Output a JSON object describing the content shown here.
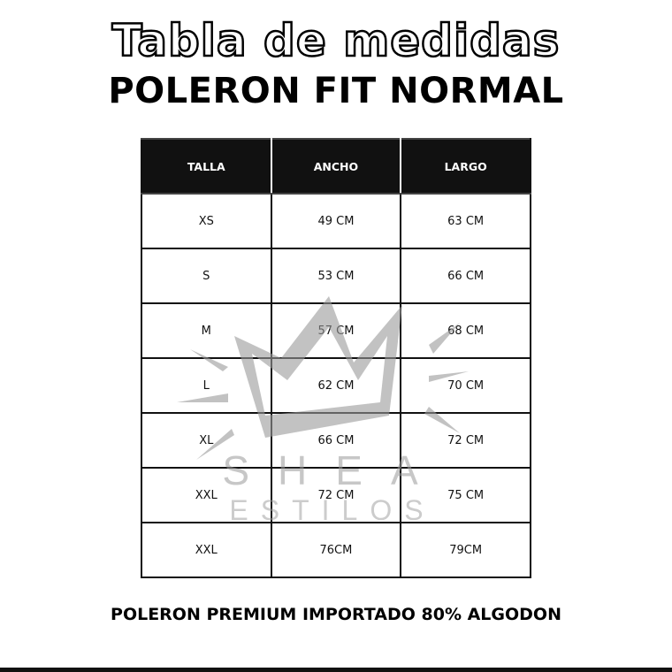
{
  "header": {
    "title": "Tabla de medidas",
    "subtitle": "POLERON FIT NORMAL"
  },
  "table": {
    "columns": [
      "TALLA",
      "ANCHO",
      "LARGO"
    ],
    "rows": [
      [
        "XS",
        "49 CM",
        "63 CM"
      ],
      [
        "S",
        "53 CM",
        "66 CM"
      ],
      [
        "M",
        "57 CM",
        "68 CM"
      ],
      [
        "L",
        "62 CM",
        "70 CM"
      ],
      [
        "XL",
        "66 CM",
        "72 CM"
      ],
      [
        "XXL",
        "72 CM",
        "75 CM"
      ],
      [
        "XXL",
        "76CM",
        "79CM"
      ]
    ]
  },
  "watermark": {
    "line1": "SHEA",
    "line2": "ESTILOS",
    "icon": "crown-icon",
    "color": "#9a9a9a"
  },
  "footer": {
    "text": "POLERON PREMIUM IMPORTADO 80% ALGODON"
  }
}
